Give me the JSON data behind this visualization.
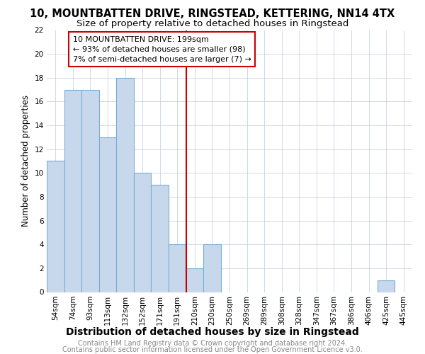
{
  "title": "10, MOUNTBATTEN DRIVE, RINGSTEAD, KETTERING, NN14 4TX",
  "subtitle": "Size of property relative to detached houses in Ringstead",
  "xlabel": "Distribution of detached houses by size in Ringstead",
  "ylabel": "Number of detached properties",
  "categories": [
    "54sqm",
    "74sqm",
    "93sqm",
    "113sqm",
    "132sqm",
    "152sqm",
    "171sqm",
    "191sqm",
    "210sqm",
    "230sqm",
    "250sqm",
    "269sqm",
    "289sqm",
    "308sqm",
    "328sqm",
    "347sqm",
    "367sqm",
    "386sqm",
    "406sqm",
    "425sqm",
    "445sqm"
  ],
  "values": [
    11,
    17,
    17,
    13,
    18,
    10,
    9,
    4,
    2,
    4,
    0,
    0,
    0,
    0,
    0,
    0,
    0,
    0,
    0,
    1,
    0
  ],
  "bar_color": "#c8d8ec",
  "bar_edge_color": "#7aadd4",
  "annotation_line0": "10 MOUNTBATTEN DRIVE: 199sqm",
  "annotation_line1": "← 93% of detached houses are smaller (98)",
  "annotation_line2": "7% of semi-detached houses are larger (7) →",
  "annotation_box_facecolor": "#ffffff",
  "annotation_box_edgecolor": "#cc0000",
  "vline_color": "#cc0000",
  "vline_x_index": 7.5,
  "ylim": [
    0,
    22
  ],
  "yticks": [
    0,
    2,
    4,
    6,
    8,
    10,
    12,
    14,
    16,
    18,
    20,
    22
  ],
  "grid_color": "#c8d4e4",
  "plot_bg_color": "#ffffff",
  "fig_bg_color": "#ffffff",
  "title_fontsize": 10.5,
  "subtitle_fontsize": 9.5,
  "xlabel_fontsize": 10,
  "ylabel_fontsize": 8.5,
  "tick_fontsize": 7.5,
  "annotation_fontsize": 8,
  "footer_fontsize": 7,
  "footer_color": "#888888",
  "footer_line1": "Contains HM Land Registry data © Crown copyright and database right 2024.",
  "footer_line2": "Contains public sector information licensed under the Open Government Licence v3.0."
}
